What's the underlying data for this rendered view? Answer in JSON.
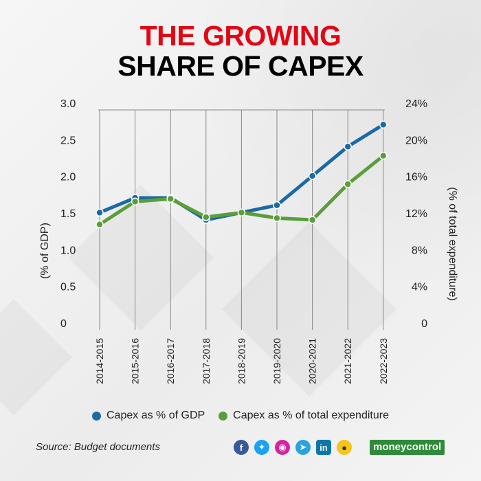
{
  "title_line1": "THE GROWING",
  "title_line2": "SHARE OF CAPEX",
  "source": "Source: Budget documents",
  "logo_text": "moneycontrol",
  "colors": {
    "title_accent": "#e30613",
    "gdp_series": "#1b6aa5",
    "expenditure_series": "#5a9e3a"
  },
  "social_icons": [
    "facebook-icon",
    "twitter-icon",
    "instagram-icon",
    "telegram-icon",
    "linkedin-icon",
    "koo-icon"
  ],
  "chart_data": {
    "type": "line",
    "x": [
      "2014-2015",
      "2015-2016",
      "2016-2017",
      "2017-2018",
      "2018-2019",
      "2019-2020",
      "2020-2021",
      "2021-2022",
      "2022-2023"
    ],
    "series": [
      {
        "name": "Capex as % of GDP",
        "axis": "left",
        "values": [
          1.6,
          1.8,
          1.8,
          1.5,
          1.6,
          1.7,
          2.1,
          2.5,
          2.8
        ]
      },
      {
        "name": "Capex as % of total expenditure",
        "axis": "right",
        "values": [
          11.5,
          14.0,
          14.3,
          12.3,
          12.8,
          12.2,
          12.0,
          15.9,
          19.0
        ]
      }
    ],
    "ylabel_left": "(% of GDP)",
    "ylabel_right": "(% of total expenditure)",
    "ylim_left": [
      0,
      3.0
    ],
    "ylim_right": [
      0,
      24
    ],
    "yticks_left": [
      "0",
      "0.5",
      "1.0",
      "1.5",
      "2.0",
      "2.5",
      "3.0"
    ],
    "yticks_right": [
      "0",
      "4%",
      "8%",
      "12%",
      "16%",
      "20%",
      "24%"
    ],
    "grid": "vertical",
    "legend_position": "bottom"
  }
}
